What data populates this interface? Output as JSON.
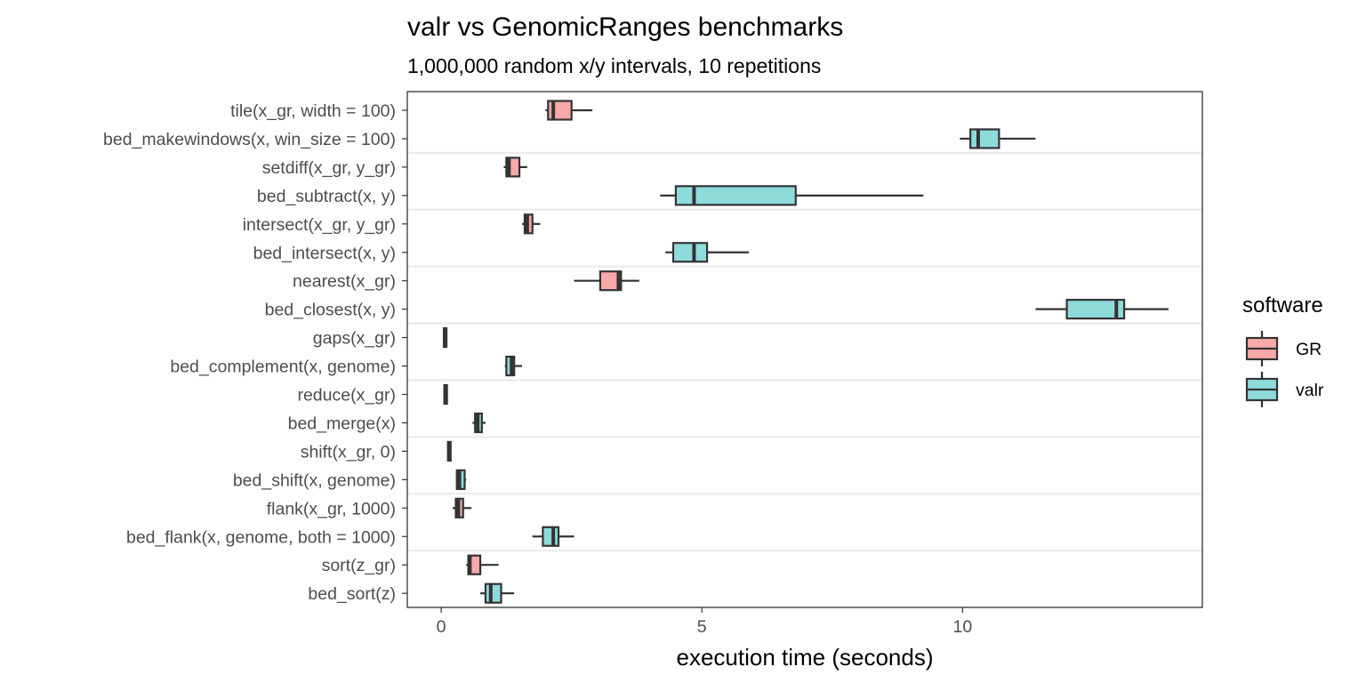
{
  "chart_data": {
    "type": "boxplot",
    "title": "valr vs GenomicRanges benchmarks",
    "subtitle": "1,000,000 random x/y intervals, 10 repetitions",
    "xlabel": "execution time (seconds)",
    "ylabel": "",
    "xlim": [
      -0.65,
      14.6
    ],
    "x_ticks": [
      0,
      5,
      10
    ],
    "grid": "horizontal separators between benchmark pairs",
    "legend": {
      "title": "software",
      "position": "right",
      "entries": [
        {
          "name": "GR",
          "color": "#F8A9A8"
        },
        {
          "name": "valr",
          "color": "#8EDBDC"
        }
      ]
    },
    "rows": [
      {
        "label": "tile(x_gr, width = 100)",
        "software": "GR",
        "min": 2.0,
        "q1": 2.05,
        "median": 2.15,
        "q3": 2.5,
        "max": 2.9
      },
      {
        "label": "bed_makewindows(x, win_size = 100)",
        "software": "valr",
        "min": 9.95,
        "q1": 10.15,
        "median": 10.3,
        "q3": 10.7,
        "max": 11.4
      },
      {
        "label": "setdiff(x_gr, y_gr)",
        "software": "GR",
        "min": 1.2,
        "q1": 1.25,
        "median": 1.3,
        "q3": 1.5,
        "max": 1.65
      },
      {
        "label": "bed_subtract(x, y)",
        "software": "valr",
        "min": 4.2,
        "q1": 4.5,
        "median": 4.85,
        "q3": 6.8,
        "max": 9.25
      },
      {
        "label": "intersect(x_gr, y_gr)",
        "software": "GR",
        "min": 1.55,
        "q1": 1.6,
        "median": 1.65,
        "q3": 1.75,
        "max": 1.9
      },
      {
        "label": "bed_intersect(x, y)",
        "software": "valr",
        "min": 4.3,
        "q1": 4.45,
        "median": 4.85,
        "q3": 5.1,
        "max": 5.9
      },
      {
        "label": "nearest(x_gr)",
        "software": "GR",
        "min": 2.55,
        "q1": 3.05,
        "median": 3.4,
        "q3": 3.45,
        "max": 3.8
      },
      {
        "label": "bed_closest(x, y)",
        "software": "valr",
        "min": 11.4,
        "q1": 12.0,
        "median": 12.95,
        "q3": 13.1,
        "max": 13.95
      },
      {
        "label": "gaps(x_gr)",
        "software": "GR",
        "min": 0.04,
        "q1": 0.05,
        "median": 0.07,
        "q3": 0.08,
        "max": 0.09
      },
      {
        "label": "bed_complement(x, genome)",
        "software": "valr",
        "min": 1.22,
        "q1": 1.25,
        "median": 1.35,
        "q3": 1.4,
        "max": 1.55
      },
      {
        "label": "reduce(x_gr)",
        "software": "GR",
        "min": 0.05,
        "q1": 0.06,
        "median": 0.08,
        "q3": 0.09,
        "max": 0.1
      },
      {
        "label": "bed_merge(x)",
        "software": "valr",
        "min": 0.6,
        "q1": 0.65,
        "median": 0.7,
        "q3": 0.78,
        "max": 0.85
      },
      {
        "label": "shift(x_gr, 0)",
        "software": "GR",
        "min": 0.12,
        "q1": 0.13,
        "median": 0.15,
        "q3": 0.16,
        "max": 0.17
      },
      {
        "label": "bed_shift(x, genome)",
        "software": "valr",
        "min": 0.28,
        "q1": 0.3,
        "median": 0.35,
        "q3": 0.45,
        "max": 0.48
      },
      {
        "label": "flank(x_gr, 1000)",
        "software": "GR",
        "min": 0.22,
        "q1": 0.28,
        "median": 0.33,
        "q3": 0.42,
        "max": 0.58
      },
      {
        "label": "bed_flank(x, genome, both = 1000)",
        "software": "valr",
        "min": 1.75,
        "q1": 1.95,
        "median": 2.15,
        "q3": 2.25,
        "max": 2.55
      },
      {
        "label": "sort(z_gr)",
        "software": "GR",
        "min": 0.48,
        "q1": 0.52,
        "median": 0.55,
        "q3": 0.75,
        "max": 1.1
      },
      {
        "label": "bed_sort(z)",
        "software": "valr",
        "min": 0.75,
        "q1": 0.85,
        "median": 0.95,
        "q3": 1.15,
        "max": 1.4
      }
    ]
  }
}
